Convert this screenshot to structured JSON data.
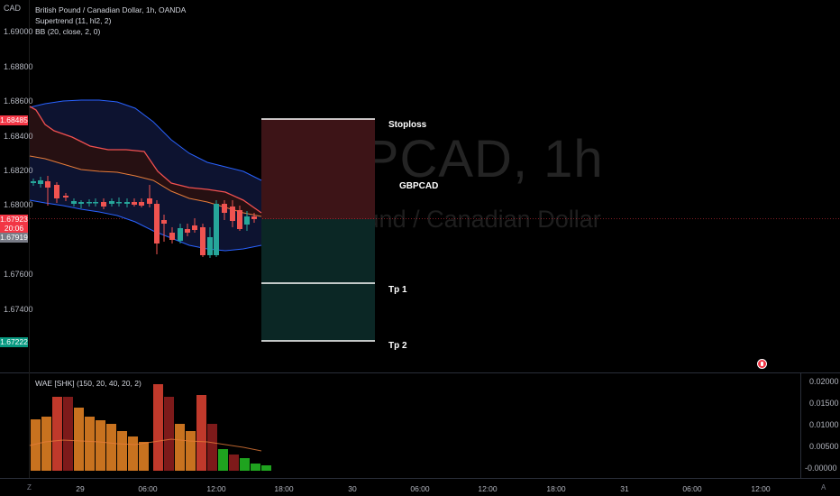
{
  "header": {
    "currency": "CAD",
    "symbol_line": "British Pound / Canadian Dollar, 1h, OANDA",
    "indicator_1": "Supertrend (11, hl2, 2)",
    "indicator_2": "BB (20, close, 2, 0)"
  },
  "watermark": {
    "symbol": "GBPCAD, 1h",
    "description": "British Pound / Canadian Dollar"
  },
  "price_axis": {
    "labels": [
      "1.69000",
      "1.68800",
      "1.68600",
      "1.68400",
      "1.68200",
      "1.68000",
      "1.67600",
      "1.67400"
    ],
    "tags": [
      {
        "text": "1.68485",
        "color": "#f23645"
      },
      {
        "text": "1.67923",
        "color": "#f23645"
      },
      {
        "text": "20:06",
        "color": "#f23645"
      },
      {
        "text": "1.67919",
        "color": "#787b86"
      },
      {
        "text": "1.67222",
        "color": "#089981"
      }
    ]
  },
  "position_tool": {
    "stoploss_label": "Stoploss",
    "name_label": "GBPCAD",
    "tp1_label": "Tp 1",
    "tp2_label": "Tp 2"
  },
  "oscillator": {
    "label": "WAE [SHK] (150, 20, 40, 20, 2)",
    "axis_labels": [
      "0.02000",
      "0.01500",
      "0.01000",
      "0.00500",
      "-0.00000"
    ]
  },
  "time_axis": {
    "labels": [
      "29",
      "06:00",
      "12:00",
      "18:00",
      "30",
      "06:00",
      "12:00",
      "18:00",
      "31",
      "06:00",
      "12:00"
    ]
  },
  "bottom_bar": {
    "left_button": "Z",
    "right_button": "A"
  },
  "colors": {
    "up": "#26a69a",
    "down": "#ef5350",
    "bb": "#2962ff",
    "supertrend_down": "#f05050",
    "basis": "#e67c3a",
    "stop_zone": "#3d1417",
    "target_zone": "#0b2725",
    "wae_bright": "#c0392b",
    "wae_dark": "#7d1a1a",
    "wae_orange": "#c8721f",
    "wae_green": "#1fa31f"
  }
}
